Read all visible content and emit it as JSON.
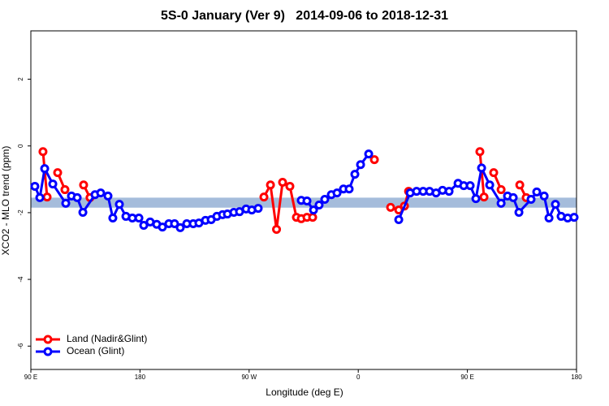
{
  "chart_data": {
    "type": "line",
    "title": "5S-0 January (Ver 9)   2014-09-06 to 2018-12-31",
    "xlabel": "Longitude (deg E)",
    "ylabel": "XCO2 - MLO trend (ppm)",
    "xlim": [
      90,
      540
    ],
    "ylim": [
      -6.7,
      3.45
    ],
    "xticks": [
      {
        "value": 90,
        "label": "90 E"
      },
      180,
      {
        "value": 270,
        "label": "90 W"
      },
      {
        "value": 360,
        "label": "0"
      },
      {
        "value": 450,
        "label": "90 E"
      },
      {
        "value": 540,
        "label": "180"
      }
    ],
    "yticks": [
      -6,
      -4,
      -2,
      0,
      2
    ],
    "band": {
      "range": [
        -1.85,
        -1.55
      ],
      "color": "#a5bcdb"
    },
    "legend": "bottomleft",
    "series": [
      {
        "name": "Land (Nadir&Glint)",
        "color": "#ff0000",
        "x": [
          100,
          103.4,
          null,
          112.1,
          118.1,
          null,
          133.5,
          138.8,
          null,
          282.2,
          287.6,
          292.6,
          297.6,
          303.6,
          309,
          313,
          317.7,
          322.4,
          null,
          373.3,
          null,
          386.7,
          393.4,
          398.1,
          401.5,
          null,
          460.3,
          463.7,
          null,
          471.7,
          477.8,
          null,
          493.2,
          498.5
        ],
        "values": [
          -0.17,
          -1.53,
          null,
          -0.8,
          -1.31,
          null,
          -1.17,
          -1.55,
          null,
          -1.53,
          -1.17,
          -2.5,
          -1.09,
          -1.21,
          -2.14,
          -2.18,
          -2.14,
          -2.14,
          null,
          -0.41,
          null,
          -1.84,
          -1.92,
          -1.8,
          -1.36,
          null,
          -0.17,
          -1.53,
          null,
          -0.8,
          -1.31,
          null,
          -1.17,
          -1.55
        ]
      },
      {
        "name": "Ocean (Glint)",
        "color": "#0000ff",
        "x": [
          93.3,
          97.4,
          101.4,
          108.1,
          118.8,
          123.5,
          128.2,
          132.9,
          142.9,
          147.6,
          153.6,
          157.6,
          163,
          168.4,
          173.7,
          179.1,
          183.1,
          188.4,
          193.8,
          198.5,
          203.8,
          208.5,
          213.2,
          218.6,
          223.9,
          228.6,
          234,
          238.7,
          243.4,
          248.1,
          252.1,
          257.4,
          262.1,
          267.5,
          272.2,
          277.5,
          null,
          313,
          317.7,
          323.1,
          327.7,
          332.4,
          337.8,
          342.5,
          347.8,
          352.5,
          357.2,
          361.9,
          368.6,
          null,
          393.4,
          402.8,
          408.1,
          413.5,
          418.8,
          424.2,
          429.5,
          434.9,
          442.3,
          447,
          452.3,
          457,
          461.7,
          468.4,
          477.8,
          483.1,
          487.8,
          492.5,
          502.5,
          507.2,
          513.3,
          517.3,
          522.6,
          527.3,
          532.7,
          538
        ],
        "values": [
          -1.21,
          -1.55,
          -0.68,
          -1.14,
          -1.72,
          -1.5,
          -1.55,
          -1.99,
          -1.46,
          -1.41,
          -1.5,
          -2.16,
          -1.75,
          -2.11,
          -2.16,
          -2.16,
          -2.38,
          -2.28,
          -2.35,
          -2.43,
          -2.33,
          -2.33,
          -2.45,
          -2.33,
          -2.33,
          -2.31,
          -2.23,
          -2.21,
          -2.11,
          -2.06,
          -2.04,
          -1.99,
          -1.97,
          -1.89,
          -1.92,
          -1.87,
          null,
          -1.63,
          -1.65,
          -1.92,
          -1.77,
          -1.6,
          -1.46,
          -1.41,
          -1.29,
          -1.29,
          -0.85,
          -0.56,
          -0.24,
          null,
          -2.21,
          -1.41,
          -1.36,
          -1.36,
          -1.36,
          -1.41,
          -1.33,
          -1.36,
          -1.12,
          -1.19,
          -1.19,
          -1.58,
          -0.66,
          -1.17,
          -1.72,
          -1.5,
          -1.55,
          -1.99,
          -1.6,
          -1.38,
          -1.5,
          -2.16,
          -1.75,
          -2.11,
          -2.16,
          -2.14
        ]
      }
    ]
  }
}
